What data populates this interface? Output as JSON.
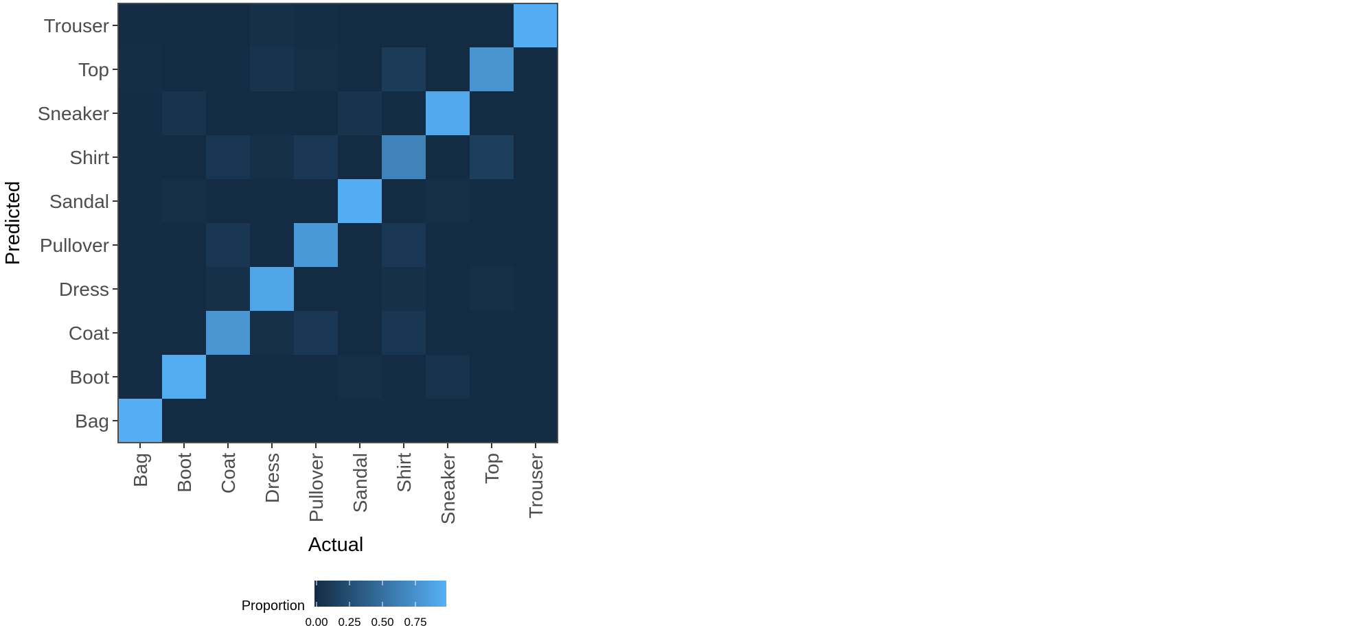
{
  "chart_data": {
    "type": "heatmap",
    "x_categories": [
      "Bag",
      "Boot",
      "Coat",
      "Dress",
      "Pullover",
      "Sandal",
      "Shirt",
      "Sneaker",
      "Top",
      "Trouser"
    ],
    "y_categories": [
      "Bag",
      "Boot",
      "Coat",
      "Dress",
      "Pullover",
      "Sandal",
      "Shirt",
      "Sneaker",
      "Top",
      "Trouser"
    ],
    "xlabel": "Actual",
    "ylabel": "Predicted",
    "legend": {
      "title": "Proportion",
      "position": "bottom",
      "range": [
        0,
        1
      ],
      "ticks": [
        0.0,
        0.25,
        0.5,
        0.75
      ],
      "tick_labels": [
        "0.00",
        "0.25",
        "0.50",
        "0.75"
      ],
      "low_color": "#132B43",
      "high_color": "#56B1F7"
    },
    "grid": false,
    "cells": [
      {
        "actual": "Bag",
        "predicted": "Bag",
        "value": 0.98
      },
      {
        "actual": "Bag",
        "predicted": "Boot",
        "value": 0.0
      },
      {
        "actual": "Bag",
        "predicted": "Coat",
        "value": 0.01
      },
      {
        "actual": "Bag",
        "predicted": "Dress",
        "value": 0.01
      },
      {
        "actual": "Bag",
        "predicted": "Pullover",
        "value": 0.01
      },
      {
        "actual": "Bag",
        "predicted": "Sandal",
        "value": 0.01
      },
      {
        "actual": "Bag",
        "predicted": "Shirt",
        "value": 0.01
      },
      {
        "actual": "Bag",
        "predicted": "Sneaker",
        "value": 0.01
      },
      {
        "actual": "Bag",
        "predicted": "Top",
        "value": 0.02
      },
      {
        "actual": "Bag",
        "predicted": "Trouser",
        "value": 0.01
      },
      {
        "actual": "Boot",
        "predicted": "Bag",
        "value": 0.0
      },
      {
        "actual": "Boot",
        "predicted": "Boot",
        "value": 0.96
      },
      {
        "actual": "Boot",
        "predicted": "Coat",
        "value": 0.0
      },
      {
        "actual": "Boot",
        "predicted": "Dress",
        "value": 0.0
      },
      {
        "actual": "Boot",
        "predicted": "Pullover",
        "value": 0.0
      },
      {
        "actual": "Boot",
        "predicted": "Sandal",
        "value": 0.03
      },
      {
        "actual": "Boot",
        "predicted": "Shirt",
        "value": 0.0
      },
      {
        "actual": "Boot",
        "predicted": "Sneaker",
        "value": 0.06
      },
      {
        "actual": "Boot",
        "predicted": "Top",
        "value": 0.0
      },
      {
        "actual": "Boot",
        "predicted": "Trouser",
        "value": 0.0
      },
      {
        "actual": "Coat",
        "predicted": "Bag",
        "value": 0.0
      },
      {
        "actual": "Coat",
        "predicted": "Boot",
        "value": 0.0
      },
      {
        "actual": "Coat",
        "predicted": "Coat",
        "value": 0.8
      },
      {
        "actual": "Coat",
        "predicted": "Dress",
        "value": 0.04
      },
      {
        "actual": "Coat",
        "predicted": "Pullover",
        "value": 0.09
      },
      {
        "actual": "Coat",
        "predicted": "Sandal",
        "value": 0.0
      },
      {
        "actual": "Coat",
        "predicted": "Shirt",
        "value": 0.08
      },
      {
        "actual": "Coat",
        "predicted": "Sneaker",
        "value": 0.0
      },
      {
        "actual": "Coat",
        "predicted": "Top",
        "value": 0.01
      },
      {
        "actual": "Coat",
        "predicted": "Trouser",
        "value": 0.0
      },
      {
        "actual": "Dress",
        "predicted": "Bag",
        "value": 0.0
      },
      {
        "actual": "Dress",
        "predicted": "Boot",
        "value": 0.0
      },
      {
        "actual": "Dress",
        "predicted": "Coat",
        "value": 0.04
      },
      {
        "actual": "Dress",
        "predicted": "Dress",
        "value": 0.91
      },
      {
        "actual": "Dress",
        "predicted": "Pullover",
        "value": 0.01
      },
      {
        "actual": "Dress",
        "predicted": "Sandal",
        "value": 0.0
      },
      {
        "actual": "Dress",
        "predicted": "Shirt",
        "value": 0.04
      },
      {
        "actual": "Dress",
        "predicted": "Sneaker",
        "value": 0.0
      },
      {
        "actual": "Dress",
        "predicted": "Top",
        "value": 0.06
      },
      {
        "actual": "Dress",
        "predicted": "Trouser",
        "value": 0.04
      },
      {
        "actual": "Pullover",
        "predicted": "Bag",
        "value": 0.0
      },
      {
        "actual": "Pullover",
        "predicted": "Boot",
        "value": 0.0
      },
      {
        "actual": "Pullover",
        "predicted": "Coat",
        "value": 0.1
      },
      {
        "actual": "Pullover",
        "predicted": "Dress",
        "value": 0.0
      },
      {
        "actual": "Pullover",
        "predicted": "Pullover",
        "value": 0.82
      },
      {
        "actual": "Pullover",
        "predicted": "Sandal",
        "value": 0.0
      },
      {
        "actual": "Pullover",
        "predicted": "Shirt",
        "value": 0.1
      },
      {
        "actual": "Pullover",
        "predicted": "Sneaker",
        "value": 0.0
      },
      {
        "actual": "Pullover",
        "predicted": "Top",
        "value": 0.03
      },
      {
        "actual": "Pullover",
        "predicted": "Trouser",
        "value": 0.02
      },
      {
        "actual": "Sandal",
        "predicted": "Bag",
        "value": 0.01
      },
      {
        "actual": "Sandal",
        "predicted": "Boot",
        "value": 0.03
      },
      {
        "actual": "Sandal",
        "predicted": "Coat",
        "value": 0.0
      },
      {
        "actual": "Sandal",
        "predicted": "Dress",
        "value": 0.0
      },
      {
        "actual": "Sandal",
        "predicted": "Pullover",
        "value": 0.0
      },
      {
        "actual": "Sandal",
        "predicted": "Sandal",
        "value": 0.97
      },
      {
        "actual": "Sandal",
        "predicted": "Shirt",
        "value": 0.0
      },
      {
        "actual": "Sandal",
        "predicted": "Sneaker",
        "value": 0.06
      },
      {
        "actual": "Sandal",
        "predicted": "Top",
        "value": 0.0
      },
      {
        "actual": "Sandal",
        "predicted": "Trouser",
        "value": 0.0
      },
      {
        "actual": "Shirt",
        "predicted": "Bag",
        "value": 0.01
      },
      {
        "actual": "Shirt",
        "predicted": "Boot",
        "value": 0.0
      },
      {
        "actual": "Shirt",
        "predicted": "Coat",
        "value": 0.08
      },
      {
        "actual": "Shirt",
        "predicted": "Dress",
        "value": 0.04
      },
      {
        "actual": "Shirt",
        "predicted": "Pullover",
        "value": 0.1
      },
      {
        "actual": "Shirt",
        "predicted": "Sandal",
        "value": 0.0
      },
      {
        "actual": "Shirt",
        "predicted": "Shirt",
        "value": 0.66
      },
      {
        "actual": "Shirt",
        "predicted": "Sneaker",
        "value": 0.0
      },
      {
        "actual": "Shirt",
        "predicted": "Top",
        "value": 0.12
      },
      {
        "actual": "Shirt",
        "predicted": "Trouser",
        "value": 0.0
      },
      {
        "actual": "Sneaker",
        "predicted": "Bag",
        "value": 0.0
      },
      {
        "actual": "Sneaker",
        "predicted": "Boot",
        "value": 0.05
      },
      {
        "actual": "Sneaker",
        "predicted": "Coat",
        "value": 0.0
      },
      {
        "actual": "Sneaker",
        "predicted": "Dress",
        "value": 0.0
      },
      {
        "actual": "Sneaker",
        "predicted": "Pullover",
        "value": 0.0
      },
      {
        "actual": "Sneaker",
        "predicted": "Sandal",
        "value": 0.03
      },
      {
        "actual": "Sneaker",
        "predicted": "Shirt",
        "value": 0.0
      },
      {
        "actual": "Sneaker",
        "predicted": "Sneaker",
        "value": 0.93
      },
      {
        "actual": "Sneaker",
        "predicted": "Top",
        "value": 0.0
      },
      {
        "actual": "Sneaker",
        "predicted": "Trouser",
        "value": 0.0
      },
      {
        "actual": "Top",
        "predicted": "Bag",
        "value": 0.01
      },
      {
        "actual": "Top",
        "predicted": "Boot",
        "value": 0.0
      },
      {
        "actual": "Top",
        "predicted": "Coat",
        "value": 0.0
      },
      {
        "actual": "Top",
        "predicted": "Dress",
        "value": 0.03
      },
      {
        "actual": "Top",
        "predicted": "Pullover",
        "value": 0.01
      },
      {
        "actual": "Top",
        "predicted": "Sandal",
        "value": 0.0
      },
      {
        "actual": "Top",
        "predicted": "Shirt",
        "value": 0.15
      },
      {
        "actual": "Top",
        "predicted": "Sneaker",
        "value": 0.0
      },
      {
        "actual": "Top",
        "predicted": "Top",
        "value": 0.78
      },
      {
        "actual": "Top",
        "predicted": "Trouser",
        "value": 0.0
      },
      {
        "actual": "Trouser",
        "predicted": "Bag",
        "value": 0.0
      },
      {
        "actual": "Trouser",
        "predicted": "Boot",
        "value": 0.0
      },
      {
        "actual": "Trouser",
        "predicted": "Coat",
        "value": 0.0
      },
      {
        "actual": "Trouser",
        "predicted": "Dress",
        "value": 0.01
      },
      {
        "actual": "Trouser",
        "predicted": "Pullover",
        "value": 0.0
      },
      {
        "actual": "Trouser",
        "predicted": "Sandal",
        "value": 0.0
      },
      {
        "actual": "Trouser",
        "predicted": "Shirt",
        "value": 0.0
      },
      {
        "actual": "Trouser",
        "predicted": "Sneaker",
        "value": 0.0
      },
      {
        "actual": "Trouser",
        "predicted": "Top",
        "value": 0.0
      },
      {
        "actual": "Trouser",
        "predicted": "Trouser",
        "value": 0.97
      }
    ]
  }
}
